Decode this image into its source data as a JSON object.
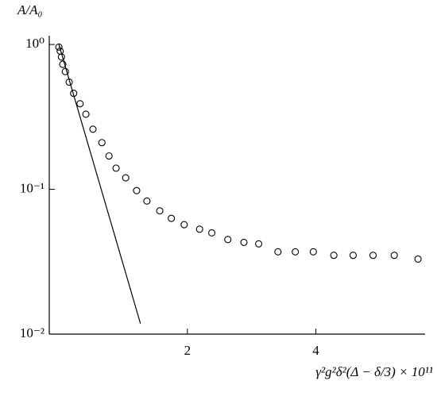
{
  "chart_data": {
    "type": "scatter",
    "y_label": "A/A₀",
    "x_label": "γ²g²δ²(Δ − δ/3) × 10¹¹",
    "log_y": true,
    "xlim": [
      -0.15,
      5.7
    ],
    "ylim": [
      0.01,
      1.15
    ],
    "xticks": [
      2,
      4
    ],
    "yticks": [
      {
        "value": 1,
        "label": "10⁰"
      },
      {
        "value": 0.1,
        "label": "10⁻¹"
      },
      {
        "value": 0.01,
        "label": "10⁻²"
      }
    ],
    "series": [
      {
        "type": "scatter",
        "color": "#000000",
        "x": [
          0.0,
          0.02,
          0.04,
          0.06,
          0.1,
          0.16,
          0.23,
          0.33,
          0.42,
          0.53,
          0.67,
          0.78,
          0.89,
          1.04,
          1.21,
          1.37,
          1.57,
          1.75,
          1.95,
          2.19,
          2.38,
          2.63,
          2.88,
          3.11,
          3.41,
          3.68,
          3.96,
          4.28,
          4.58,
          4.89,
          5.22,
          5.59
        ],
        "values": [
          0.96,
          0.9,
          0.82,
          0.73,
          0.65,
          0.55,
          0.46,
          0.39,
          0.33,
          0.26,
          0.21,
          0.17,
          0.14,
          0.12,
          0.098,
          0.083,
          0.071,
          0.063,
          0.057,
          0.053,
          0.05,
          0.045,
          0.043,
          0.042,
          0.037,
          0.037,
          0.037,
          0.035,
          0.035,
          0.035,
          0.035,
          0.033
        ]
      },
      {
        "type": "line",
        "color": "#000000",
        "x": [
          0.0,
          1.27
        ],
        "values": [
          1.0,
          0.0118
        ]
      }
    ]
  }
}
